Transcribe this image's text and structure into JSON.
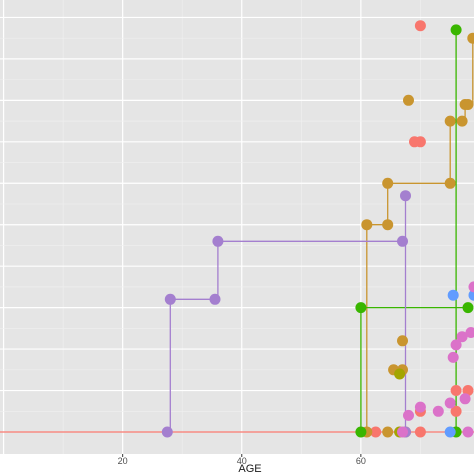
{
  "chart_data": {
    "type": "line",
    "step": true,
    "xlabel": "AGE",
    "ylabel": "",
    "title": "",
    "xlim": [
      -0.6,
      79
    ],
    "ylim": [
      0,
      10.3
    ],
    "x_ticks": [
      20,
      40,
      60
    ],
    "grid": true,
    "legend": "none",
    "colors": {
      "panel": "#e5e5e5",
      "grid_major": "#ffffff",
      "grid_minor": "#f0f0f0"
    },
    "series": [
      {
        "color": "#f8766d",
        "points": [
          [
            62.5,
            0
          ],
          [
            70,
            0
          ],
          [
            70,
            0.5
          ],
          [
            76,
            0.5
          ],
          [
            76,
            1.0
          ],
          [
            78,
            1.0
          ],
          [
            70,
            7.0
          ],
          [
            69,
            7.0
          ],
          [
            70,
            9.8
          ]
        ],
        "draw": "markers"
      },
      {
        "color": "#f8766d",
        "path": [
          [
            -0.6,
            0
          ],
          [
            79,
            0
          ]
        ],
        "draw": "line"
      },
      {
        "color": "#c9952f",
        "points": [
          [
            61,
            0
          ],
          [
            61,
            5.0
          ],
          [
            64.5,
            5.0
          ],
          [
            64.5,
            6.0
          ],
          [
            75,
            6.0
          ],
          [
            75,
            7.5
          ],
          [
            77,
            7.5
          ],
          [
            77.5,
            7.9
          ],
          [
            78,
            7.9
          ],
          [
            78.8,
            9.5
          ]
        ],
        "draw": "step"
      },
      {
        "color": "#c9952f",
        "points": [
          [
            64.5,
            0
          ],
          [
            65.5,
            1.5
          ],
          [
            67,
            1.5
          ],
          [
            67,
            2.2
          ],
          [
            68,
            8.0
          ],
          [
            67.5,
            0
          ]
        ],
        "draw": "markers"
      },
      {
        "color": "#a3a500",
        "points": [
          [
            66.5,
            0
          ],
          [
            66.5,
            1.4
          ]
        ],
        "draw": "markers"
      },
      {
        "color": "#39b600",
        "points": [
          [
            60,
            0
          ],
          [
            60,
            3.0
          ],
          [
            78,
            3.0
          ]
        ],
        "draw": "step"
      },
      {
        "color": "#39b600",
        "points": [
          [
            76,
            9.7
          ],
          [
            76,
            0
          ]
        ],
        "draw": "step"
      },
      {
        "color": "#619cff",
        "points": [
          [
            75.5,
            3.3
          ],
          [
            79,
            3.3
          ],
          [
            75,
            0
          ]
        ],
        "draw": "markers"
      },
      {
        "color": "#a47fcf",
        "points": [
          [
            27.5,
            0
          ],
          [
            28,
            3.2
          ],
          [
            35.5,
            3.2
          ],
          [
            36,
            4.6
          ],
          [
            67,
            4.6
          ],
          [
            67.5,
            5.7
          ],
          [
            67.5,
            0
          ]
        ],
        "draw": "step"
      },
      {
        "color": "#db72c9",
        "points": [
          [
            67,
            0
          ],
          [
            68,
            0.4
          ],
          [
            70,
            0.6
          ],
          [
            73,
            0.5
          ],
          [
            75,
            0.7
          ],
          [
            75.5,
            1.8
          ],
          [
            76,
            2.1
          ],
          [
            77,
            2.3
          ],
          [
            77.5,
            0.8
          ],
          [
            78.5,
            2.4
          ],
          [
            79,
            3.5
          ],
          [
            78,
            0
          ]
        ],
        "draw": "markers"
      }
    ]
  }
}
